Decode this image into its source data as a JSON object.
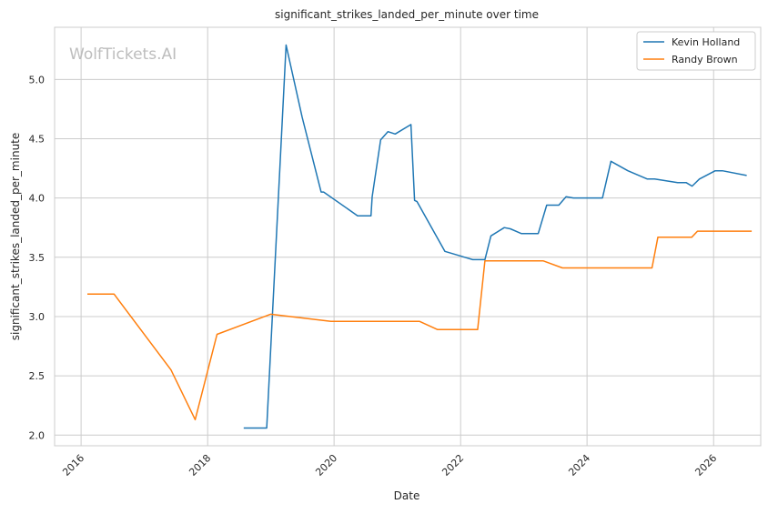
{
  "chart_data": {
    "type": "line",
    "title": "significant_strikes_landed_per_minute over time",
    "xlabel": "Date",
    "ylabel": "significant_strikes_landed_per_minute",
    "watermark": "WolfTickets.AI",
    "x_axis_type": "date",
    "xlim": [
      "2015-08-01",
      "2026-09-30"
    ],
    "ylim": [
      1.91,
      5.44
    ],
    "x_ticks": [
      "2016-01-01",
      "2018-01-01",
      "2020-01-01",
      "2022-01-01",
      "2024-01-01",
      "2026-01-01"
    ],
    "x_tick_labels": [
      "2016",
      "2018",
      "2020",
      "2022",
      "2024",
      "2026"
    ],
    "x_tick_rotation": 45,
    "y_ticks": [
      2.0,
      2.5,
      3.0,
      3.5,
      4.0,
      4.5,
      5.0
    ],
    "y_tick_labels": [
      "2.0",
      "2.5",
      "3.0",
      "3.5",
      "4.0",
      "4.5",
      "5.0"
    ],
    "grid": true,
    "legend_position": "top-right",
    "series": [
      {
        "name": "Kevin Holland",
        "color": "#1f77b4",
        "points": [
          [
            "2018-07-28",
            2.06
          ],
          [
            "2018-12-08",
            2.06
          ],
          [
            "2019-03-30",
            5.29
          ],
          [
            "2019-07-01",
            4.68
          ],
          [
            "2019-10-18",
            4.05
          ],
          [
            "2019-11-02",
            4.05
          ],
          [
            "2020-05-16",
            3.85
          ],
          [
            "2020-08-01",
            3.85
          ],
          [
            "2020-08-08",
            4.01
          ],
          [
            "2020-09-26",
            4.49
          ],
          [
            "2020-11-07",
            4.56
          ],
          [
            "2020-12-19",
            4.54
          ],
          [
            "2021-03-20",
            4.62
          ],
          [
            "2021-04-10",
            3.98
          ],
          [
            "2021-04-24",
            3.97
          ],
          [
            "2021-10-02",
            3.55
          ],
          [
            "2022-03-12",
            3.48
          ],
          [
            "2022-05-21",
            3.48
          ],
          [
            "2022-06-25",
            3.68
          ],
          [
            "2022-09-10",
            3.75
          ],
          [
            "2022-10-15",
            3.74
          ],
          [
            "2022-12-17",
            3.7
          ],
          [
            "2023-03-25",
            3.7
          ],
          [
            "2023-05-13",
            3.94
          ],
          [
            "2023-07-22",
            3.94
          ],
          [
            "2023-09-02",
            4.01
          ],
          [
            "2023-10-14",
            4.0
          ],
          [
            "2024-03-30",
            4.0
          ],
          [
            "2024-05-18",
            4.31
          ],
          [
            "2024-08-24",
            4.23
          ],
          [
            "2024-12-14",
            4.16
          ],
          [
            "2025-01-25",
            4.16
          ],
          [
            "2025-06-07",
            4.13
          ],
          [
            "2025-07-26",
            4.13
          ],
          [
            "2025-08-30",
            4.1
          ],
          [
            "2025-10-11",
            4.16
          ],
          [
            "2026-01-10",
            4.23
          ],
          [
            "2026-02-21",
            4.23
          ],
          [
            "2026-07-11",
            4.19
          ]
        ]
      },
      {
        "name": "Randy Brown",
        "color": "#ff7f0e",
        "points": [
          [
            "2016-02-06",
            3.19
          ],
          [
            "2016-07-09",
            3.19
          ],
          [
            "2017-06-03",
            2.55
          ],
          [
            "2017-10-21",
            2.13
          ],
          [
            "2018-02-24",
            2.85
          ],
          [
            "2018-12-30",
            3.02
          ],
          [
            "2019-12-14",
            2.96
          ],
          [
            "2021-05-08",
            2.96
          ],
          [
            "2021-08-21",
            2.89
          ],
          [
            "2022-04-09",
            2.89
          ],
          [
            "2022-05-21",
            3.47
          ],
          [
            "2023-04-22",
            3.47
          ],
          [
            "2023-08-12",
            3.41
          ],
          [
            "2024-09-28",
            3.41
          ],
          [
            "2025-01-10",
            3.41
          ],
          [
            "2025-02-13",
            3.67
          ],
          [
            "2025-08-28",
            3.67
          ],
          [
            "2025-09-30",
            3.72
          ],
          [
            "2026-08-09",
            3.72
          ]
        ]
      }
    ]
  }
}
